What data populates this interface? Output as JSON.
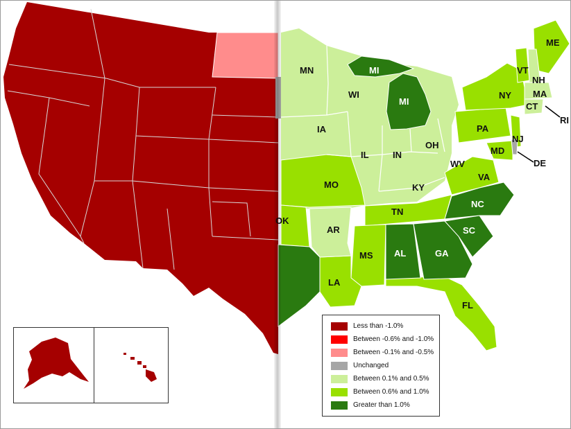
{
  "colors": {
    "lt_neg1": "#a50000",
    "neg06_neg1": "#ff0000",
    "neg01_neg05": "#ff8c8c",
    "unchanged": "#a6a6a6",
    "p01_p05": "#ccef9a",
    "p06_p10": "#99e000",
    "gt1": "#2a7a10",
    "border": "#ffffff"
  },
  "legend": {
    "items": [
      {
        "label": "Less than -1.0%",
        "color": "#a50000"
      },
      {
        "label": "Between -0.6% and -1.0%",
        "color": "#ff0000"
      },
      {
        "label": "Between -0.1% and -0.5%",
        "color": "#ff8c8c"
      },
      {
        "label": "Unchanged",
        "color": "#a6a6a6"
      },
      {
        "label": "Between 0.1% and 0.5%",
        "color": "#ccef9a"
      },
      {
        "label": "Between 0.6% and 1.0%",
        "color": "#99e000"
      },
      {
        "label": "Greater than 1.0%",
        "color": "#2a7a10"
      }
    ]
  },
  "labels": {
    "MN": "MN",
    "WI": "WI",
    "MI_UP": "MI",
    "MI": "MI",
    "IA": "IA",
    "IL": "IL",
    "IN": "IN",
    "OH": "OH",
    "WV": "WV",
    "KY": "KY",
    "MO": "MO",
    "OK": "OK",
    "AR": "AR",
    "TN": "TN",
    "MS": "MS",
    "AL": "AL",
    "GA": "GA",
    "SC": "SC",
    "NC": "NC",
    "VA": "VA",
    "MD": "MD",
    "DE": "DE",
    "NJ": "NJ",
    "PA": "PA",
    "NY": "NY",
    "CT": "CT",
    "RI": "RI",
    "MA": "MA",
    "NH": "NH",
    "VT": "VT",
    "ME": "ME",
    "LA": "LA",
    "FL": "FL"
  }
}
